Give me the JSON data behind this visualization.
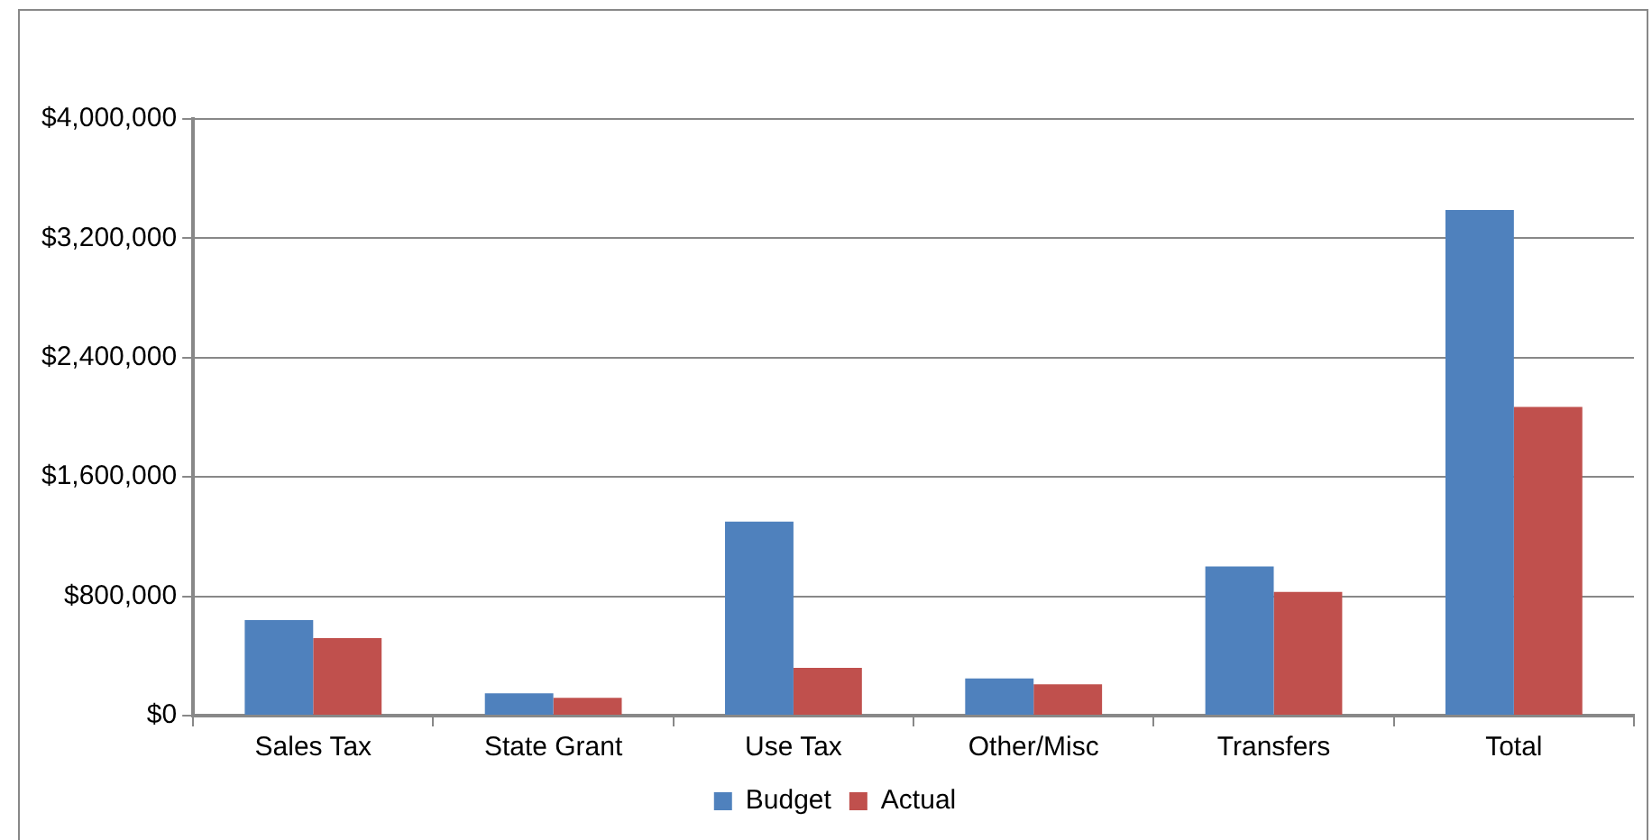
{
  "chart_data": {
    "type": "bar",
    "categories": [
      "Sales Tax",
      "State Grant",
      "Use Tax",
      "Other/Misc",
      "Transfers",
      "Total"
    ],
    "series": [
      {
        "name": "Budget",
        "color": "#4f81bd",
        "values": [
          640000,
          150000,
          1300000,
          250000,
          1000000,
          3390000
        ]
      },
      {
        "name": "Actual",
        "color": "#c0504d",
        "values": [
          520000,
          120000,
          320000,
          210000,
          830000,
          2070000
        ]
      }
    ],
    "ylim": [
      0,
      4000000
    ],
    "yticks": [
      {
        "value": 0,
        "label": "$0"
      },
      {
        "value": 800000,
        "label": "$800,000"
      },
      {
        "value": 1600000,
        "label": "$1,600,000"
      },
      {
        "value": 2400000,
        "label": "$2,400,000"
      },
      {
        "value": 3200000,
        "label": "$3,200,000"
      },
      {
        "value": 4000000,
        "label": "$4,000,000"
      }
    ],
    "grid": "y",
    "legend": "bottom"
  }
}
